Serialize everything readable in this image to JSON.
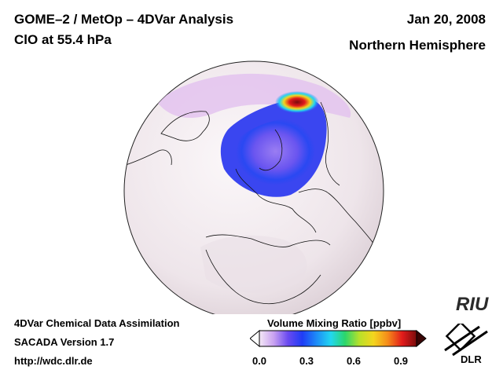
{
  "header": {
    "title_line1": "GOME–2 / MetOp – 4DVar Analysis",
    "title_line2": "ClO at 55.4 hPa",
    "date": "Jan 20, 2008",
    "hemisphere": "Northern Hemisphere"
  },
  "footer": {
    "line1": "4DVar Chemical Data Assimilation",
    "line2": "SACADA Version 1.7",
    "line3": "http://wdc.dlr.de"
  },
  "colorbar": {
    "title": "Volume Mixing Ratio [ppbv]",
    "ticks": [
      "0.0",
      "0.3",
      "0.6",
      "0.9"
    ],
    "tick_values": [
      0.0,
      0.3,
      0.6,
      0.9
    ],
    "range": [
      0.0,
      1.0
    ],
    "colors": [
      "#f4e8f6",
      "#c9a2f0",
      "#6a4af0",
      "#1f3cf5",
      "#1e8cf7",
      "#22d6f0",
      "#2bd66b",
      "#b8e02a",
      "#f4d51e",
      "#f58a1a",
      "#e21b1b",
      "#7a0c0c"
    ]
  },
  "map": {
    "projection": "orthographic",
    "background_color": "#f4eef1",
    "ocean_shading": "#ece3e8"
  },
  "logos": {
    "riu": "RIU",
    "dlr": "DLR"
  }
}
